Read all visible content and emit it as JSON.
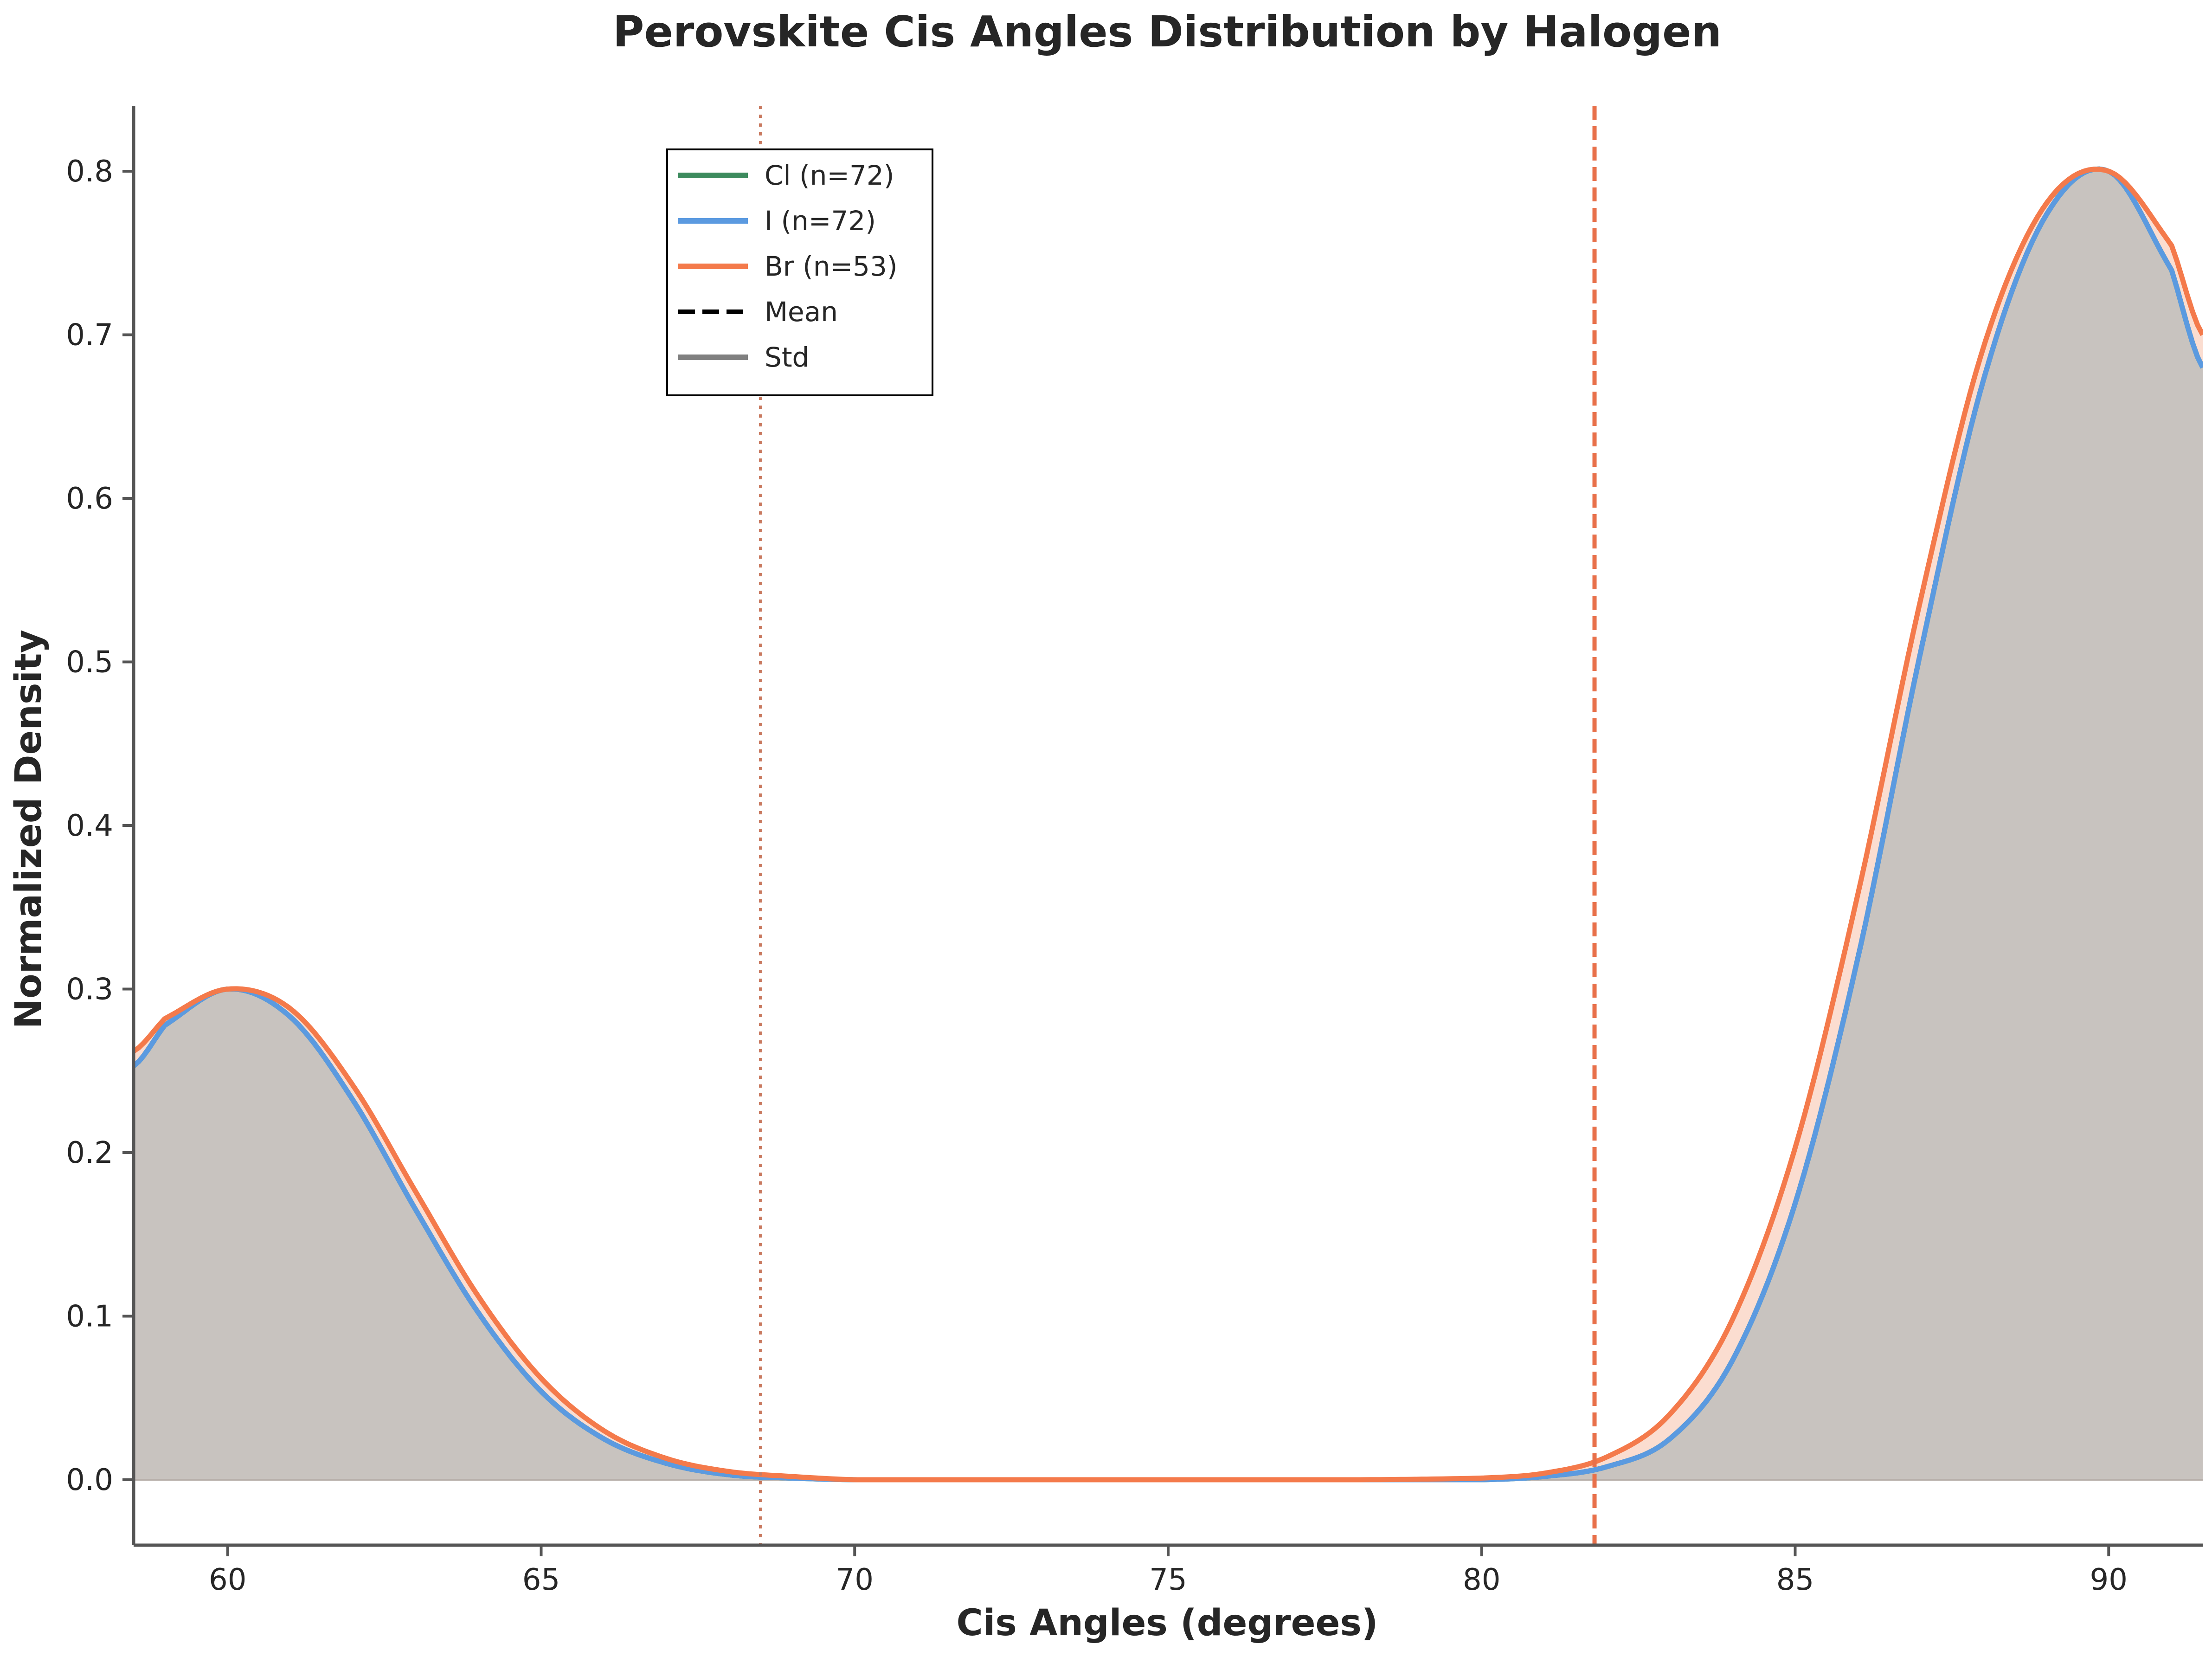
{
  "chart_data": {
    "type": "area",
    "title": "Perovskite Cis Angles Distribution by Halogen",
    "xlabel": "Cis Angles (degrees)",
    "ylabel": "Normalized Density",
    "xlim": [
      58.5,
      91.5
    ],
    "ylim": [
      -0.04,
      0.84
    ],
    "xticks": [
      {
        "value": 60,
        "label": "60"
      },
      {
        "value": 65,
        "label": "65"
      },
      {
        "value": 70,
        "label": "70"
      },
      {
        "value": 75,
        "label": "75"
      },
      {
        "value": 80,
        "label": "80"
      },
      {
        "value": 85,
        "label": "85"
      },
      {
        "value": 90,
        "label": "90"
      }
    ],
    "yticks": [
      {
        "value": 0.0,
        "label": "0.0"
      },
      {
        "value": 0.1,
        "label": "0.1"
      },
      {
        "value": 0.2,
        "label": "0.2"
      },
      {
        "value": 0.3,
        "label": "0.3"
      },
      {
        "value": 0.4,
        "label": "0.4"
      },
      {
        "value": 0.5,
        "label": "0.5"
      },
      {
        "value": 0.6,
        "label": "0.6"
      },
      {
        "value": 0.7,
        "label": "0.7"
      },
      {
        "value": 0.8,
        "label": "0.8"
      }
    ],
    "grid": false,
    "legend_position": "upper-left-center",
    "series": [
      {
        "name": "Cl (n=72)",
        "color": "#3d8b5e",
        "x": [
          58.5,
          59.0,
          60.0,
          61.0,
          62.0,
          63.0,
          64.0,
          65.0,
          66.0,
          67.0,
          68.0,
          69.0,
          70.0,
          72.0,
          75.0,
          78.0,
          80.0,
          81.0,
          82.0,
          83.0,
          84.0,
          85.0,
          86.0,
          87.0,
          88.0,
          89.0,
          90.0,
          91.0,
          91.5
        ],
        "y": [
          0.253,
          0.278,
          0.3,
          0.283,
          0.232,
          0.165,
          0.102,
          0.054,
          0.025,
          0.01,
          0.003,
          0.001,
          0.0,
          0.0,
          0.0,
          0.0,
          0.0,
          0.002,
          0.008,
          0.025,
          0.073,
          0.169,
          0.319,
          0.506,
          0.672,
          0.773,
          0.8,
          0.74,
          0.68
        ]
      },
      {
        "name": "I (n=72)",
        "color": "#5b9ae0",
        "x": [
          58.5,
          59.0,
          60.0,
          61.0,
          62.0,
          63.0,
          64.0,
          65.0,
          66.0,
          67.0,
          68.0,
          69.0,
          70.0,
          72.0,
          75.0,
          78.0,
          80.0,
          81.0,
          82.0,
          83.0,
          84.0,
          85.0,
          86.0,
          87.0,
          88.0,
          89.0,
          90.0,
          91.0,
          91.5
        ],
        "y": [
          0.253,
          0.278,
          0.3,
          0.283,
          0.232,
          0.165,
          0.102,
          0.054,
          0.025,
          0.01,
          0.003,
          0.001,
          0.0,
          0.0,
          0.0,
          0.0,
          0.0,
          0.002,
          0.008,
          0.025,
          0.073,
          0.169,
          0.319,
          0.506,
          0.672,
          0.773,
          0.8,
          0.74,
          0.68
        ]
      },
      {
        "name": "Br (n=53)",
        "color": "#f47a4b",
        "fill": "#fbd9cb",
        "x": [
          58.5,
          59.0,
          60.0,
          61.0,
          62.0,
          63.0,
          64.0,
          65.0,
          66.0,
          67.0,
          68.0,
          69.0,
          70.0,
          72.0,
          75.0,
          78.0,
          80.0,
          81.0,
          82.0,
          83.0,
          84.0,
          85.0,
          86.0,
          87.0,
          88.0,
          89.0,
          90.0,
          91.0,
          91.5
        ],
        "y": [
          0.262,
          0.282,
          0.3,
          0.288,
          0.241,
          0.176,
          0.112,
          0.062,
          0.03,
          0.013,
          0.005,
          0.002,
          0.0,
          0.0,
          0.0,
          0.0,
          0.001,
          0.004,
          0.014,
          0.04,
          0.098,
          0.203,
          0.358,
          0.538,
          0.692,
          0.78,
          0.8,
          0.755,
          0.7
        ]
      }
    ],
    "vlines": [
      {
        "name": "Mean",
        "x": 81.8,
        "style": "dashed",
        "color": "#e8704a"
      },
      {
        "name": "Std",
        "x": 68.5,
        "style": "dotted",
        "color": "#c97a60"
      }
    ],
    "legend": [
      {
        "label": "Cl (n=72)",
        "color": "#3d8b5e",
        "style": "solid"
      },
      {
        "label": "I (n=72)",
        "color": "#5b9ae0",
        "style": "solid"
      },
      {
        "label": "Br (n=53)",
        "color": "#f47a4b",
        "style": "solid"
      },
      {
        "label": "Mean",
        "color": "#000000",
        "style": "dashed"
      },
      {
        "label": "Std",
        "color": "#808080",
        "style": "solid"
      }
    ],
    "colors": {
      "overlap_fill": "#c8c3bf",
      "axis": "#555555"
    }
  }
}
